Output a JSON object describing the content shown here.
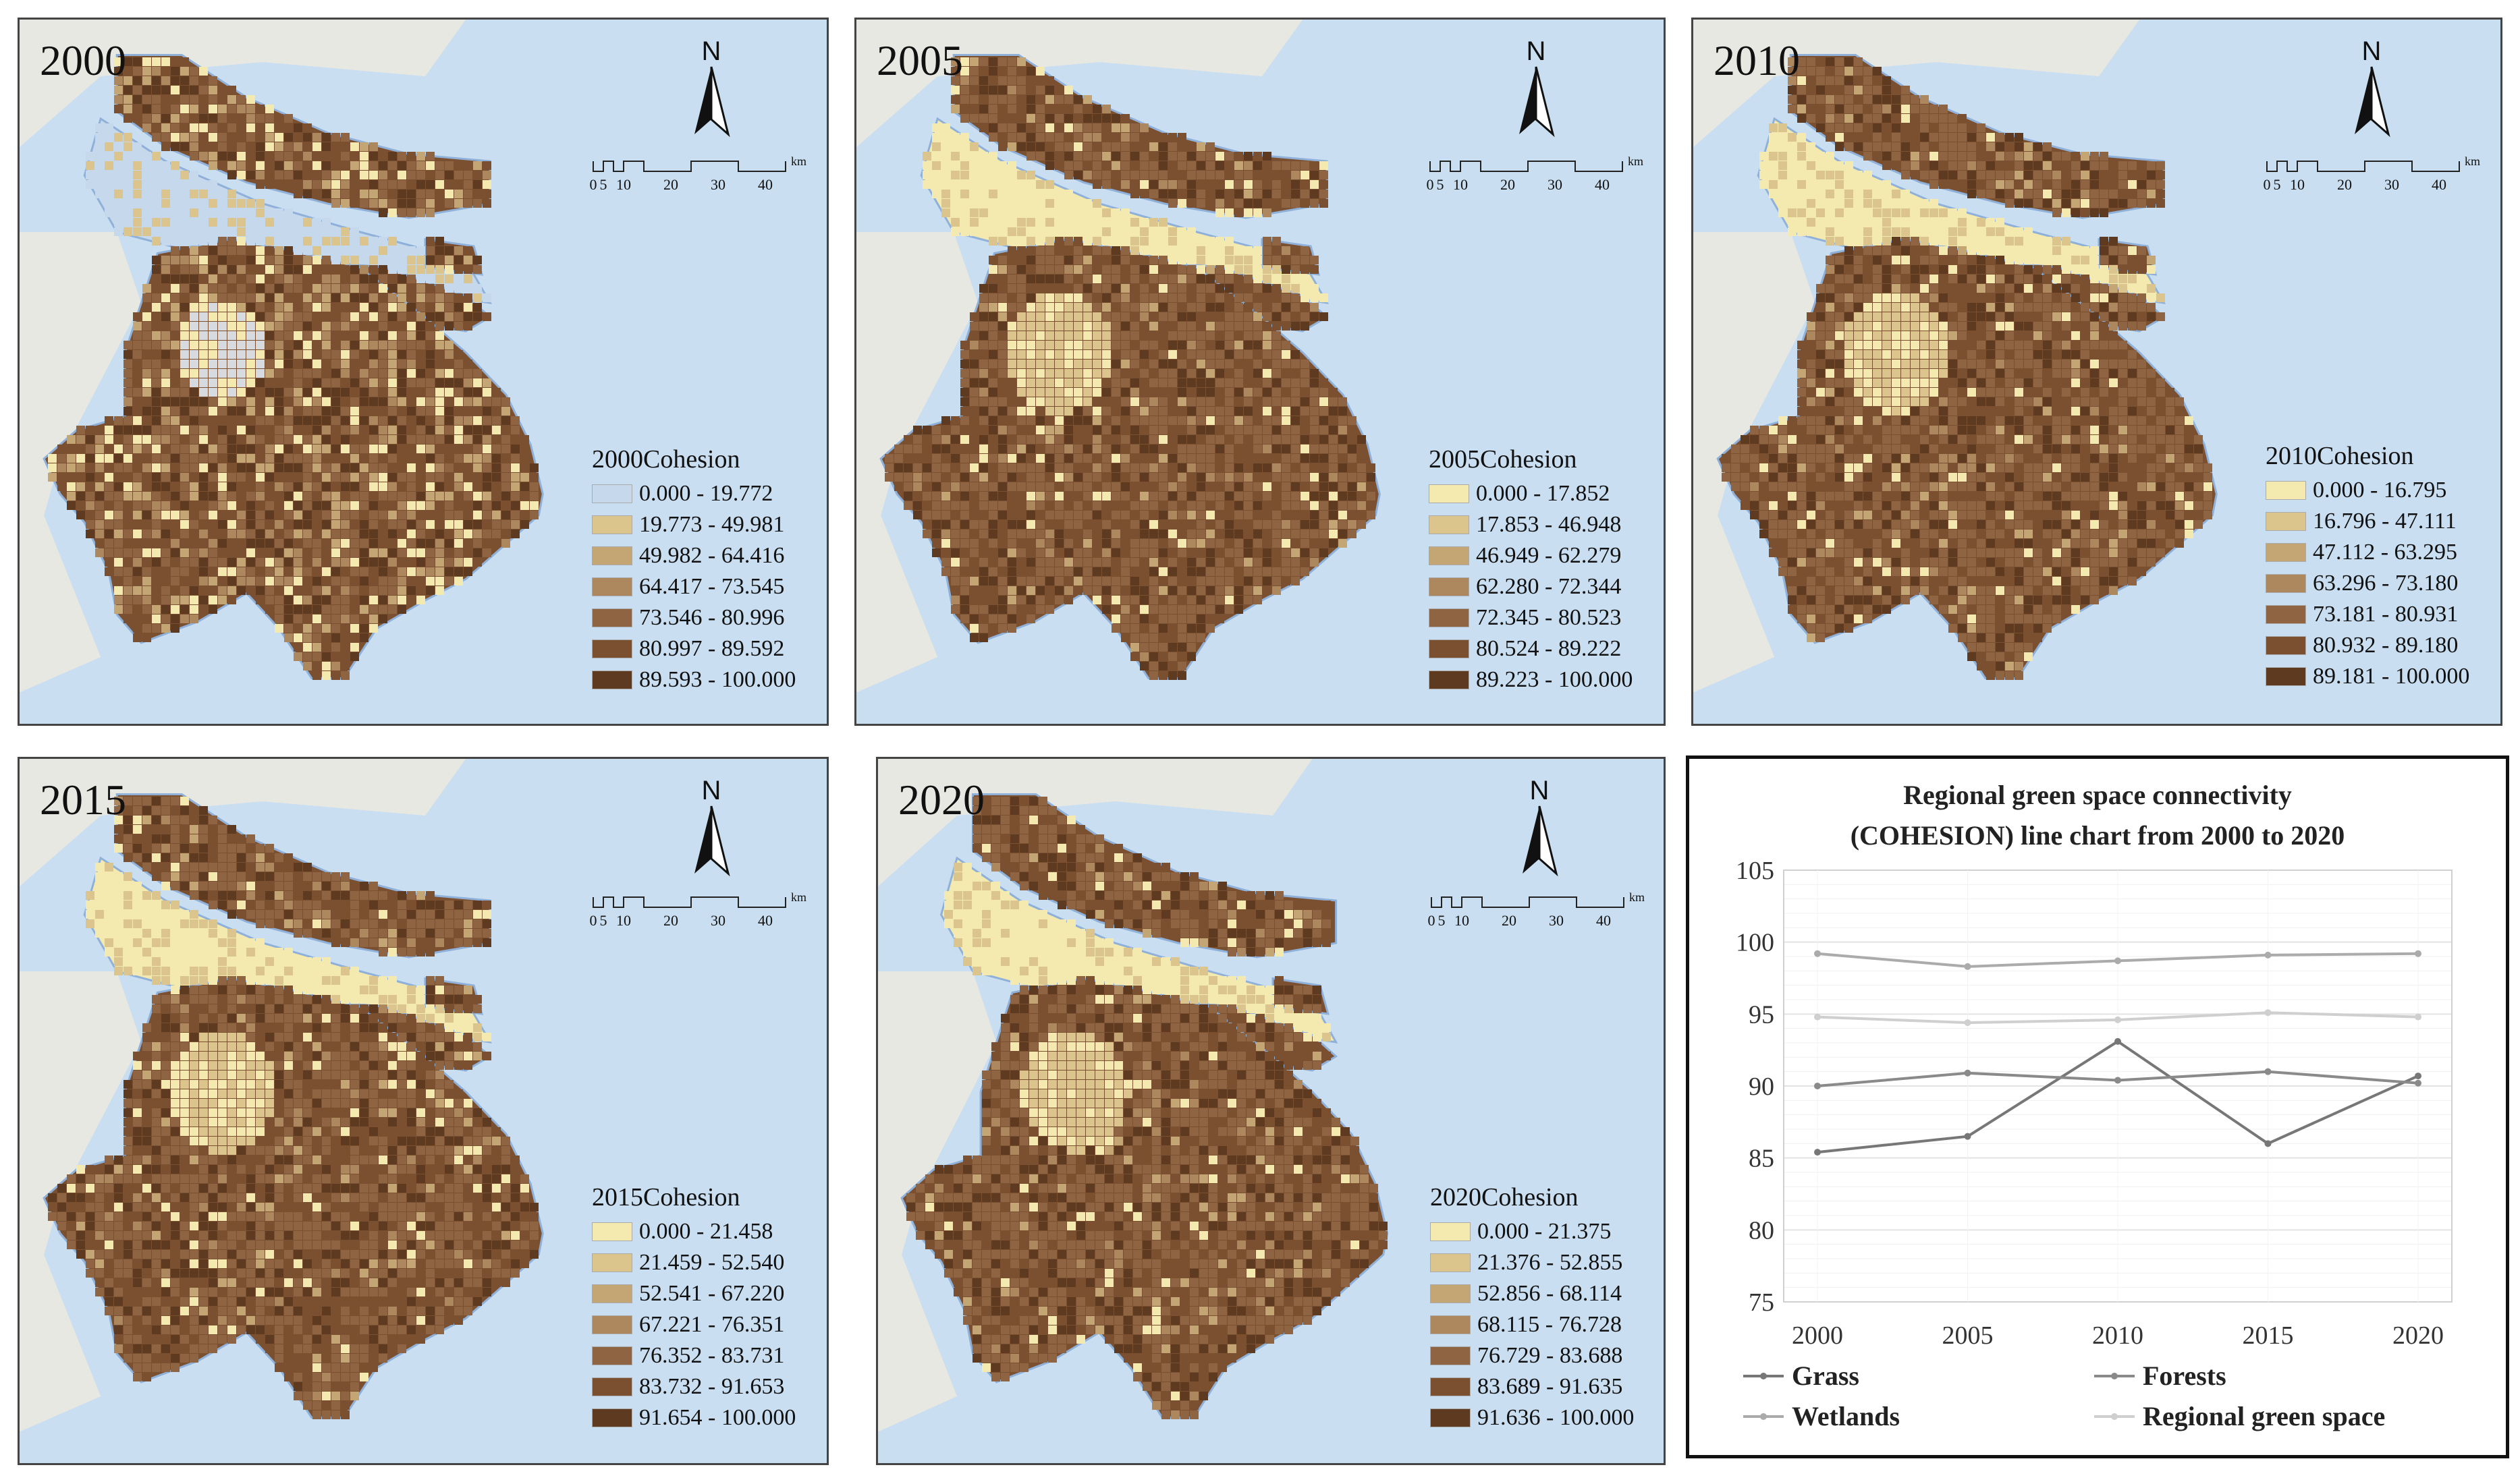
{
  "maps": [
    {
      "year": "2000",
      "legend_title": "2000Cohesion",
      "classes": [
        "0.000 - 19.772",
        "19.773 - 49.981",
        "49.982 - 64.416",
        "64.417 - 73.545",
        "73.546 - 80.996",
        "80.997 - 89.592",
        "89.593 - 100.000"
      ]
    },
    {
      "year": "2005",
      "legend_title": "2005Cohesion",
      "classes": [
        "0.000 - 17.852",
        "17.853 - 46.948",
        "46.949 - 62.279",
        "62.280 - 72.344",
        "72.345 - 80.523",
        "80.524 - 89.222",
        "89.223 - 100.000"
      ]
    },
    {
      "year": "2010",
      "legend_title": "2010Cohesion",
      "classes": [
        "0.000 - 16.795",
        "16.796 - 47.111",
        "47.112 - 63.295",
        "63.296 - 73.180",
        "73.181 - 80.931",
        "80.932 - 89.180",
        "89.181 - 100.000"
      ]
    },
    {
      "year": "2015",
      "legend_title": "2015Cohesion",
      "classes": [
        "0.000 - 21.458",
        "21.459 - 52.540",
        "52.541 - 67.220",
        "67.221 - 76.351",
        "76.352 - 83.731",
        "83.732 - 91.653",
        "91.654 - 100.000"
      ]
    },
    {
      "year": "2020",
      "legend_title": "2020Cohesion",
      "classes": [
        "0.000 - 21.375",
        "21.376 - 52.855",
        "52.856 - 68.114",
        "68.115 - 76.728",
        "76.729 - 83.688",
        "83.689 - 91.635",
        "91.636 - 100.000"
      ]
    }
  ],
  "scale_bar": {
    "ticks": [
      "0",
      "5",
      "10",
      "20",
      "30",
      "40"
    ],
    "unit": "km"
  },
  "north_label": "N",
  "colors": {
    "water": "#c9def0",
    "land": "#e8e8e3",
    "ramp": [
      "#f4eab0",
      "#dcc58c",
      "#c4a574",
      "#ad875d",
      "#8f6443",
      "#7a5030",
      "#5e3a20"
    ],
    "class0_2000": "#c6d8ec",
    "chart_grid": "#e3e3e3",
    "axis_text": "#333333"
  },
  "chart_data": {
    "type": "line",
    "title": "Regional green space connectivity (COHESION) line chart from 2000 to 2020",
    "title_lines": [
      "Regional green space connectivity",
      "(COHESION) line chart from 2000 to 2020"
    ],
    "categories": [
      "2000",
      "2005",
      "2010",
      "2015",
      "2020"
    ],
    "ylim": [
      75,
      105
    ],
    "yticks": [
      75,
      80,
      85,
      90,
      95,
      100,
      105
    ],
    "grid": true,
    "legend_position": "bottom",
    "series": [
      {
        "name": "Grass",
        "values": [
          85.4,
          86.5,
          93.1,
          86.0,
          90.7
        ],
        "color": "#777777"
      },
      {
        "name": "Forests",
        "values": [
          90.0,
          90.9,
          90.4,
          91.0,
          90.2
        ],
        "color": "#8a8a8a"
      },
      {
        "name": "Wetlands",
        "values": [
          99.2,
          98.3,
          98.7,
          99.1,
          99.2
        ],
        "color": "#ababab"
      },
      {
        "name": "Regional green space",
        "values": [
          94.8,
          94.4,
          94.6,
          95.1,
          94.8
        ],
        "color": "#cfcfcf"
      }
    ]
  }
}
